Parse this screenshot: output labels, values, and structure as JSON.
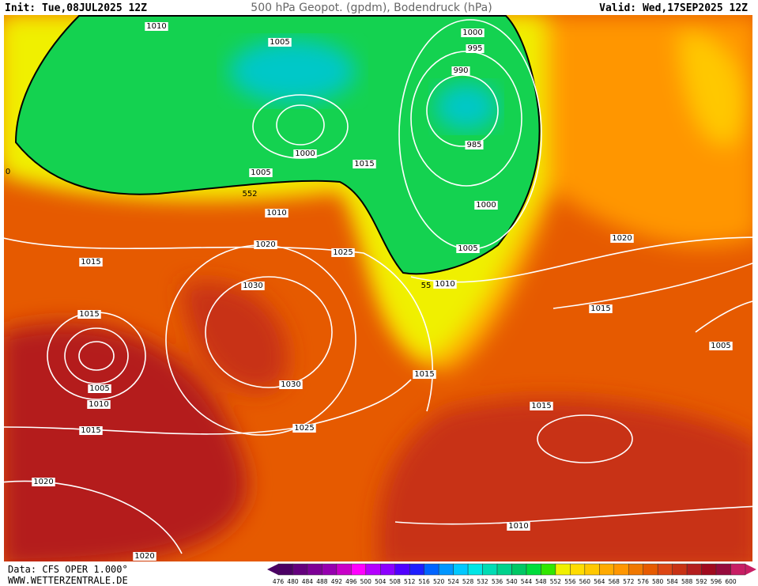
{
  "header": {
    "init": "Init: Tue,08JUL2025 12Z",
    "title": "500 hPa Geopot. (gpdm), Bodendruck (hPa)",
    "valid": "Valid: Wed,17SEP2025 12Z"
  },
  "map": {
    "labels": [
      "1010",
      "1005",
      "1000",
      "995",
      "990",
      "985",
      "1000",
      "1005",
      "1015",
      "1010",
      "1000",
      "1020",
      "1025",
      "1005",
      "1015",
      "1010",
      "1030",
      "1020",
      "1015",
      "1015",
      "1005",
      "1015",
      "1005",
      "1030",
      "1010",
      "1015",
      "1015",
      "1025",
      "1020",
      "1010",
      "1020",
      "552",
      "55",
      "0"
    ]
  },
  "colorbar": {
    "labels": [
      "476",
      "480",
      "484",
      "488",
      "492",
      "496",
      "500",
      "504",
      "508",
      "512",
      "516",
      "520",
      "524",
      "528",
      "532",
      "536",
      "540",
      "544",
      "548",
      "552",
      "556",
      "560",
      "564",
      "568",
      "572",
      "576",
      "580",
      "584",
      "588",
      "592",
      "596",
      "600"
    ],
    "colors": [
      "#4b0064",
      "#64007d",
      "#7d0096",
      "#9600af",
      "#c800c8",
      "#ff00ff",
      "#b400ff",
      "#8c00ff",
      "#5000ff",
      "#1e1eff",
      "#0064ff",
      "#0096ff",
      "#00c8ff",
      "#00e6e6",
      "#00dcb4",
      "#00d28c",
      "#00c864",
      "#00dc3c",
      "#32e600",
      "#f0f000",
      "#ffdc00",
      "#ffc800",
      "#ffaa00",
      "#ff9600",
      "#f07800",
      "#e65a00",
      "#dc4614",
      "#c83214",
      "#b41e1e",
      "#a00a1e",
      "#960a3c",
      "#c81e64"
    ]
  },
  "footer": {
    "source": "Data: CFS OPER 1.000°",
    "site": "WWW.WETTERZENTRALE.DE"
  }
}
